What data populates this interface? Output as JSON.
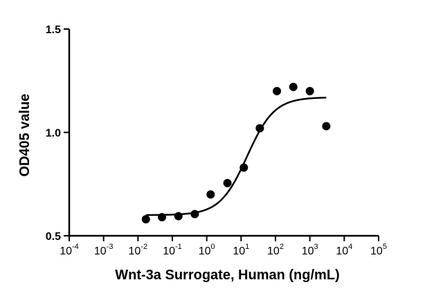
{
  "chart_data": {
    "type": "scatter",
    "xlabel": "Wnt-3a Surrogate, Human (ng/mL)",
    "ylabel": "OD405 value",
    "xscale": "log",
    "xlim": [
      0.0001,
      100000
    ],
    "ylim": [
      0.5,
      1.5
    ],
    "x_ticks": [
      {
        "base": "10",
        "exp": "-4",
        "value": 0.0001
      },
      {
        "base": "10",
        "exp": "-3",
        "value": 0.001
      },
      {
        "base": "10",
        "exp": "-2",
        "value": 0.01
      },
      {
        "base": "10",
        "exp": "-1",
        "value": 0.1
      },
      {
        "base": "10",
        "exp": "0",
        "value": 1
      },
      {
        "base": "10",
        "exp": "1",
        "value": 10
      },
      {
        "base": "10",
        "exp": "2",
        "value": 100
      },
      {
        "base": "10",
        "exp": "3",
        "value": 1000
      },
      {
        "base": "10",
        "exp": "4",
        "value": 10000
      },
      {
        "base": "10",
        "exp": "5",
        "value": 100000
      }
    ],
    "y_ticks": [
      {
        "label": "0.5",
        "value": 0.5
      },
      {
        "label": "1.0",
        "value": 1.0
      },
      {
        "label": "1.5",
        "value": 1.5
      }
    ],
    "series": [
      {
        "points": [
          {
            "x": 0.017,
            "y": 0.58
          },
          {
            "x": 0.05,
            "y": 0.59
          },
          {
            "x": 0.15,
            "y": 0.595
          },
          {
            "x": 0.45,
            "y": 0.605
          },
          {
            "x": 1.3,
            "y": 0.7
          },
          {
            "x": 4,
            "y": 0.755
          },
          {
            "x": 12,
            "y": 0.83
          },
          {
            "x": 35,
            "y": 1.02
          },
          {
            "x": 110,
            "y": 1.2
          },
          {
            "x": 330,
            "y": 1.22
          },
          {
            "x": 1000,
            "y": 1.2
          },
          {
            "x": 3000,
            "y": 1.03
          }
        ],
        "fit": {
          "model": "4PL",
          "bottom": 0.6,
          "top": 1.17,
          "ec50": 15,
          "hill": 1.1,
          "x_range": [
            0.017,
            3000
          ]
        }
      }
    ],
    "grid": false,
    "legend": "none"
  }
}
